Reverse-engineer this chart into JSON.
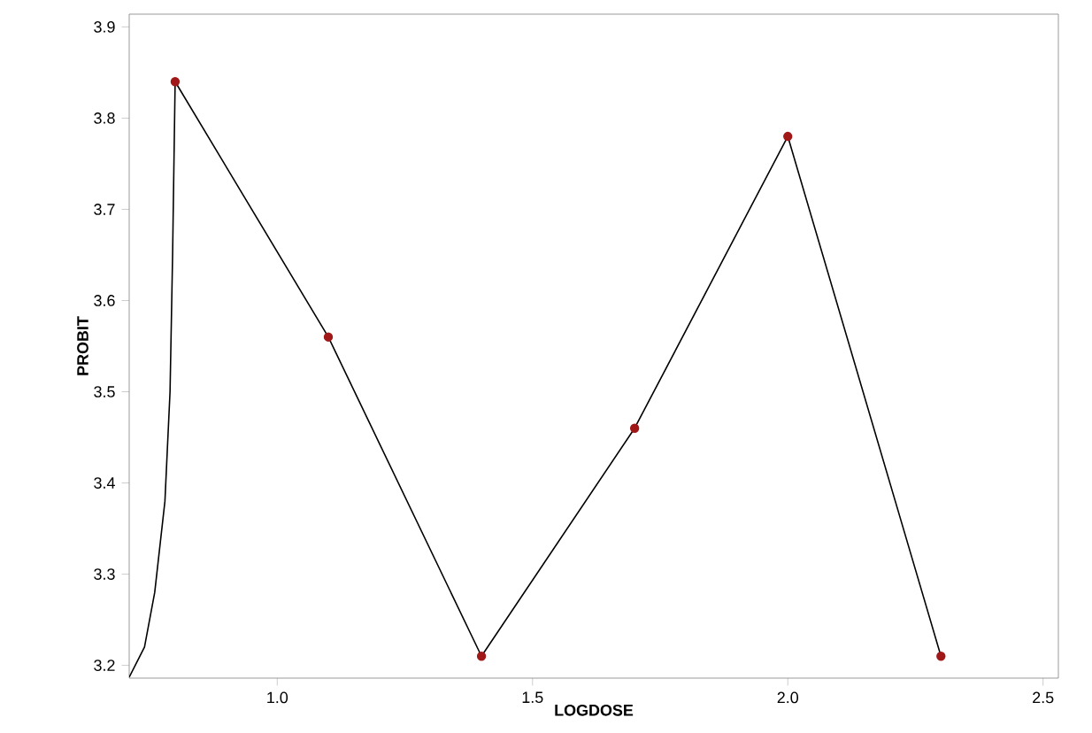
{
  "chart_data": {
    "type": "line",
    "xlabel": "LOGDOSE",
    "ylabel": "PROBIT",
    "xlim": [
      0.71,
      2.53
    ],
    "ylim": [
      3.186,
      3.914
    ],
    "xticks": [
      {
        "value": 1.0,
        "label": "1.0"
      },
      1.5,
      {
        "value": 2.0,
        "label": "2.0"
      },
      2.5
    ],
    "yticks": [
      3.2,
      3.3,
      3.4,
      3.5,
      3.6,
      3.7,
      3.8,
      3.9
    ],
    "grid": false,
    "series": [
      {
        "color": "#000000",
        "marker": "none",
        "x": [
          0.71,
          0.74,
          0.76,
          0.78,
          0.79,
          0.795,
          0.8
        ],
        "values": [
          3.187,
          3.22,
          3.28,
          3.38,
          3.5,
          3.65,
          3.84
        ]
      },
      {
        "color": "#000000",
        "marker": "none",
        "x": [
          0.8,
          1.1,
          1.4,
          1.7,
          2.0,
          2.3
        ],
        "values": [
          3.84,
          3.56,
          3.21,
          3.46,
          3.78,
          3.21
        ]
      },
      {
        "type": "scatter",
        "color": "#a01818",
        "marker": "circle",
        "x": [
          0.8,
          1.1,
          1.4,
          1.7,
          2.0,
          2.3
        ],
        "values": [
          3.84,
          3.56,
          3.21,
          3.46,
          3.78,
          3.21
        ]
      }
    ]
  }
}
